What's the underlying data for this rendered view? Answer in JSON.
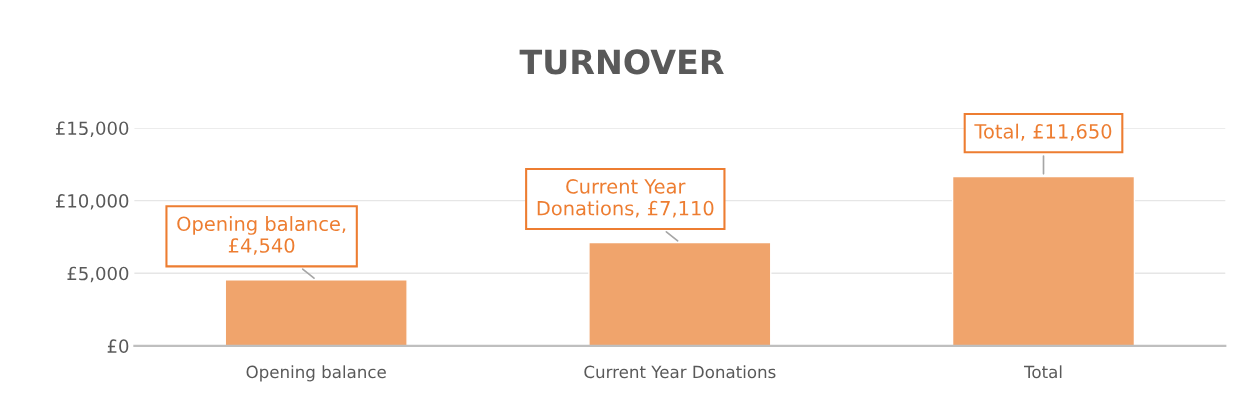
{
  "chart_data": {
    "type": "bar",
    "title": "TURNOVER",
    "categories": [
      "Opening balance",
      "Current Year Donations",
      "Total"
    ],
    "values": [
      4540,
      7110,
      11650
    ],
    "color": "#f0a46c",
    "value_labels": [
      "Opening balance,\n£4,540",
      "Current Year\nDonations, £7,110",
      "Total, £11,650"
    ],
    "ylim": [
      0,
      15000
    ],
    "yticks": [
      {
        "value": 0,
        "label": "£0"
      },
      {
        "value": 5000,
        "label": "£5,000"
      },
      {
        "value": 10000,
        "label": "£10,000"
      },
      {
        "value": 15000,
        "label": "£15,000"
      }
    ],
    "grid": "y"
  }
}
